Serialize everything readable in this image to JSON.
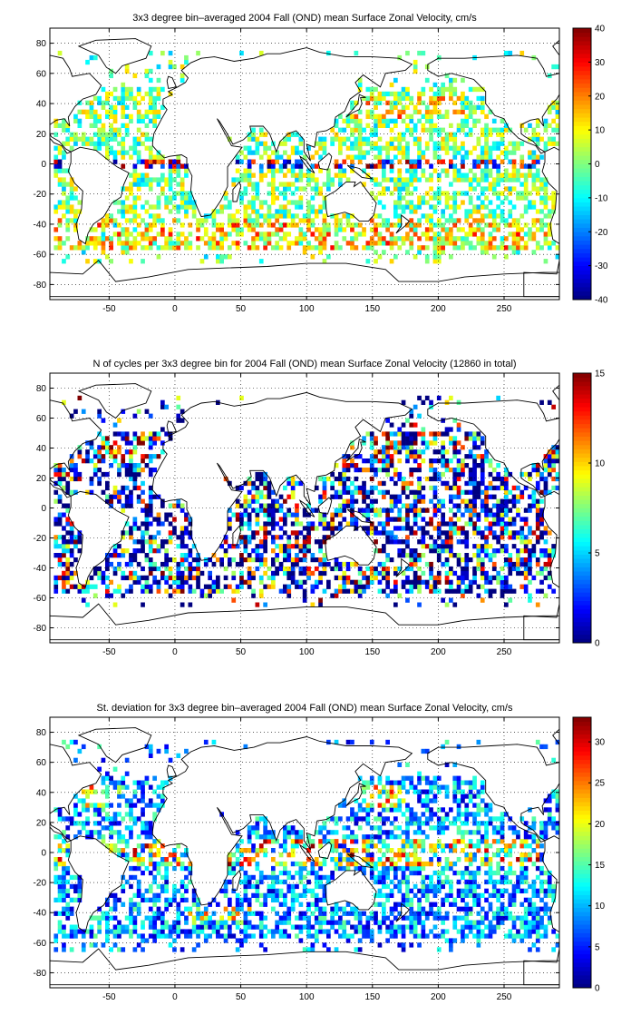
{
  "chart_data": [
    {
      "type": "heatmap",
      "title": "3x3 degree bin–averaged 2004 Fall (OND) mean Surface Zonal Velocity, cm/s",
      "xlim": [
        -95,
        292
      ],
      "ylim": [
        -90,
        90
      ],
      "xticks": [
        -50,
        0,
        50,
        100,
        150,
        200,
        250
      ],
      "yticks": [
        80,
        60,
        40,
        20,
        0,
        -20,
        -40,
        -60,
        -80
      ],
      "colorbar": {
        "min": -40,
        "max": 40,
        "ticks": [
          40,
          30,
          20,
          10,
          0,
          -10,
          -20,
          -30,
          -40
        ]
      },
      "colormap": "jet",
      "bin_size_deg": 3,
      "grid": true
    },
    {
      "type": "heatmap",
      "title": "N of cycles per 3x3 degree bin for 2004 Fall (OND) mean Surface Zonal Velocity (12860 in total)",
      "xlim": [
        -95,
        292
      ],
      "ylim": [
        -90,
        90
      ],
      "xticks": [
        -50,
        0,
        50,
        100,
        150,
        200,
        250
      ],
      "yticks": [
        80,
        60,
        40,
        20,
        0,
        -20,
        -40,
        -60,
        -80
      ],
      "colorbar": {
        "min": 0,
        "max": 15,
        "ticks": [
          15,
          10,
          5,
          0
        ]
      },
      "colormap": "jet",
      "bin_size_deg": 3,
      "grid": true
    },
    {
      "type": "heatmap",
      "title": "St. deviation for 3x3 degree bin–averaged 2004 Fall (OND) mean Surface Zonal Velocity, cm/s",
      "xlim": [
        -95,
        292
      ],
      "ylim": [
        -90,
        90
      ],
      "xticks": [
        -50,
        0,
        50,
        100,
        150,
        200,
        250
      ],
      "yticks": [
        80,
        60,
        40,
        20,
        0,
        -20,
        -40,
        -60,
        -80
      ],
      "colorbar": {
        "min": 0,
        "max": 33,
        "ticks": [
          30,
          25,
          20,
          15,
          10,
          5,
          0
        ]
      },
      "colormap": "jet",
      "bin_size_deg": 3,
      "grid": true
    }
  ]
}
